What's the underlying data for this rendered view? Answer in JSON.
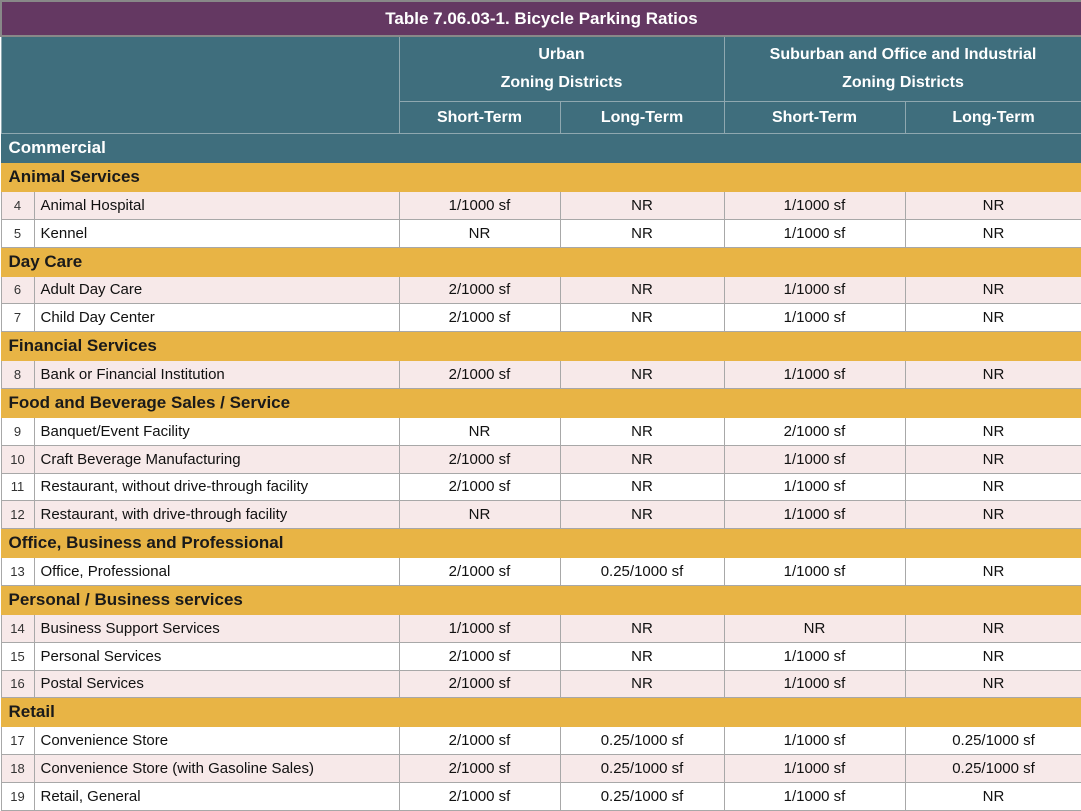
{
  "title": "Table 7.06.03-1. Bicycle Parking Ratios",
  "groups": [
    {
      "line1": "Urban",
      "line2": "Zoning Districts"
    },
    {
      "line1": "Suburban and Office and Industrial",
      "line2": "Zoning Districts"
    }
  ],
  "subheaders": [
    "Short-Term",
    "Long-Term",
    "Short-Term",
    "Long-Term"
  ],
  "section": "Commercial",
  "colors": {
    "title": "#643862",
    "header": "#3f6e7d",
    "category": "#e8b445",
    "row_alt": "#f7e9e9"
  },
  "categories": [
    {
      "name": "Animal Services",
      "rows": [
        {
          "num": "4",
          "name": "Animal Hospital",
          "vals": [
            "1/1000 sf",
            "NR",
            "1/1000 sf",
            "NR"
          ]
        },
        {
          "num": "5",
          "name": "Kennel",
          "vals": [
            "NR",
            "NR",
            "1/1000 sf",
            "NR"
          ]
        }
      ]
    },
    {
      "name": "Day Care",
      "rows": [
        {
          "num": "6",
          "name": "Adult Day Care",
          "vals": [
            "2/1000 sf",
            "NR",
            "1/1000 sf",
            "NR"
          ]
        },
        {
          "num": "7",
          "name": "Child Day Center",
          "vals": [
            "2/1000 sf",
            "NR",
            "1/1000 sf",
            "NR"
          ]
        }
      ]
    },
    {
      "name": "Financial Services",
      "rows": [
        {
          "num": "8",
          "name": "Bank or Financial Institution",
          "vals": [
            "2/1000 sf",
            "NR",
            "1/1000 sf",
            "NR"
          ]
        }
      ]
    },
    {
      "name": "Food and Beverage Sales / Service",
      "rows": [
        {
          "num": "9",
          "name": "Banquet/Event Facility",
          "vals": [
            "NR",
            "NR",
            "2/1000 sf",
            "NR"
          ]
        },
        {
          "num": "10",
          "name": "Craft Beverage Manufacturing",
          "vals": [
            "2/1000 sf",
            "NR",
            "1/1000 sf",
            "NR"
          ]
        },
        {
          "num": "11",
          "name": "Restaurant, without drive-through facility",
          "vals": [
            "2/1000 sf",
            "NR",
            "1/1000 sf",
            "NR"
          ]
        },
        {
          "num": "12",
          "name": "Restaurant, with drive-through facility",
          "vals": [
            "NR",
            "NR",
            "1/1000 sf",
            "NR"
          ]
        }
      ]
    },
    {
      "name": "Office, Business and Professional",
      "rows": [
        {
          "num": "13",
          "name": "Office, Professional",
          "vals": [
            "2/1000 sf",
            "0.25/1000 sf",
            "1/1000 sf",
            "NR"
          ]
        }
      ]
    },
    {
      "name": "Personal / Business services",
      "rows": [
        {
          "num": "14",
          "name": "Business Support Services",
          "vals": [
            "1/1000 sf",
            "NR",
            "NR",
            "NR"
          ]
        },
        {
          "num": "15",
          "name": "Personal Services",
          "vals": [
            "2/1000 sf",
            "NR",
            "1/1000 sf",
            "NR"
          ]
        },
        {
          "num": "16",
          "name": "Postal Services",
          "vals": [
            "2/1000 sf",
            "NR",
            "1/1000 sf",
            "NR"
          ]
        }
      ]
    },
    {
      "name": "Retail",
      "rows": [
        {
          "num": "17",
          "name": "Convenience Store",
          "vals": [
            "2/1000 sf",
            "0.25/1000 sf",
            "1/1000 sf",
            "0.25/1000 sf"
          ]
        },
        {
          "num": "18",
          "name": "Convenience Store (with Gasoline Sales)",
          "vals": [
            "2/1000 sf",
            "0.25/1000 sf",
            "1/1000 sf",
            "0.25/1000 sf"
          ]
        },
        {
          "num": "19",
          "name": "Retail, General",
          "vals": [
            "2/1000 sf",
            "0.25/1000 sf",
            "1/1000 sf",
            "NR"
          ]
        }
      ]
    }
  ]
}
